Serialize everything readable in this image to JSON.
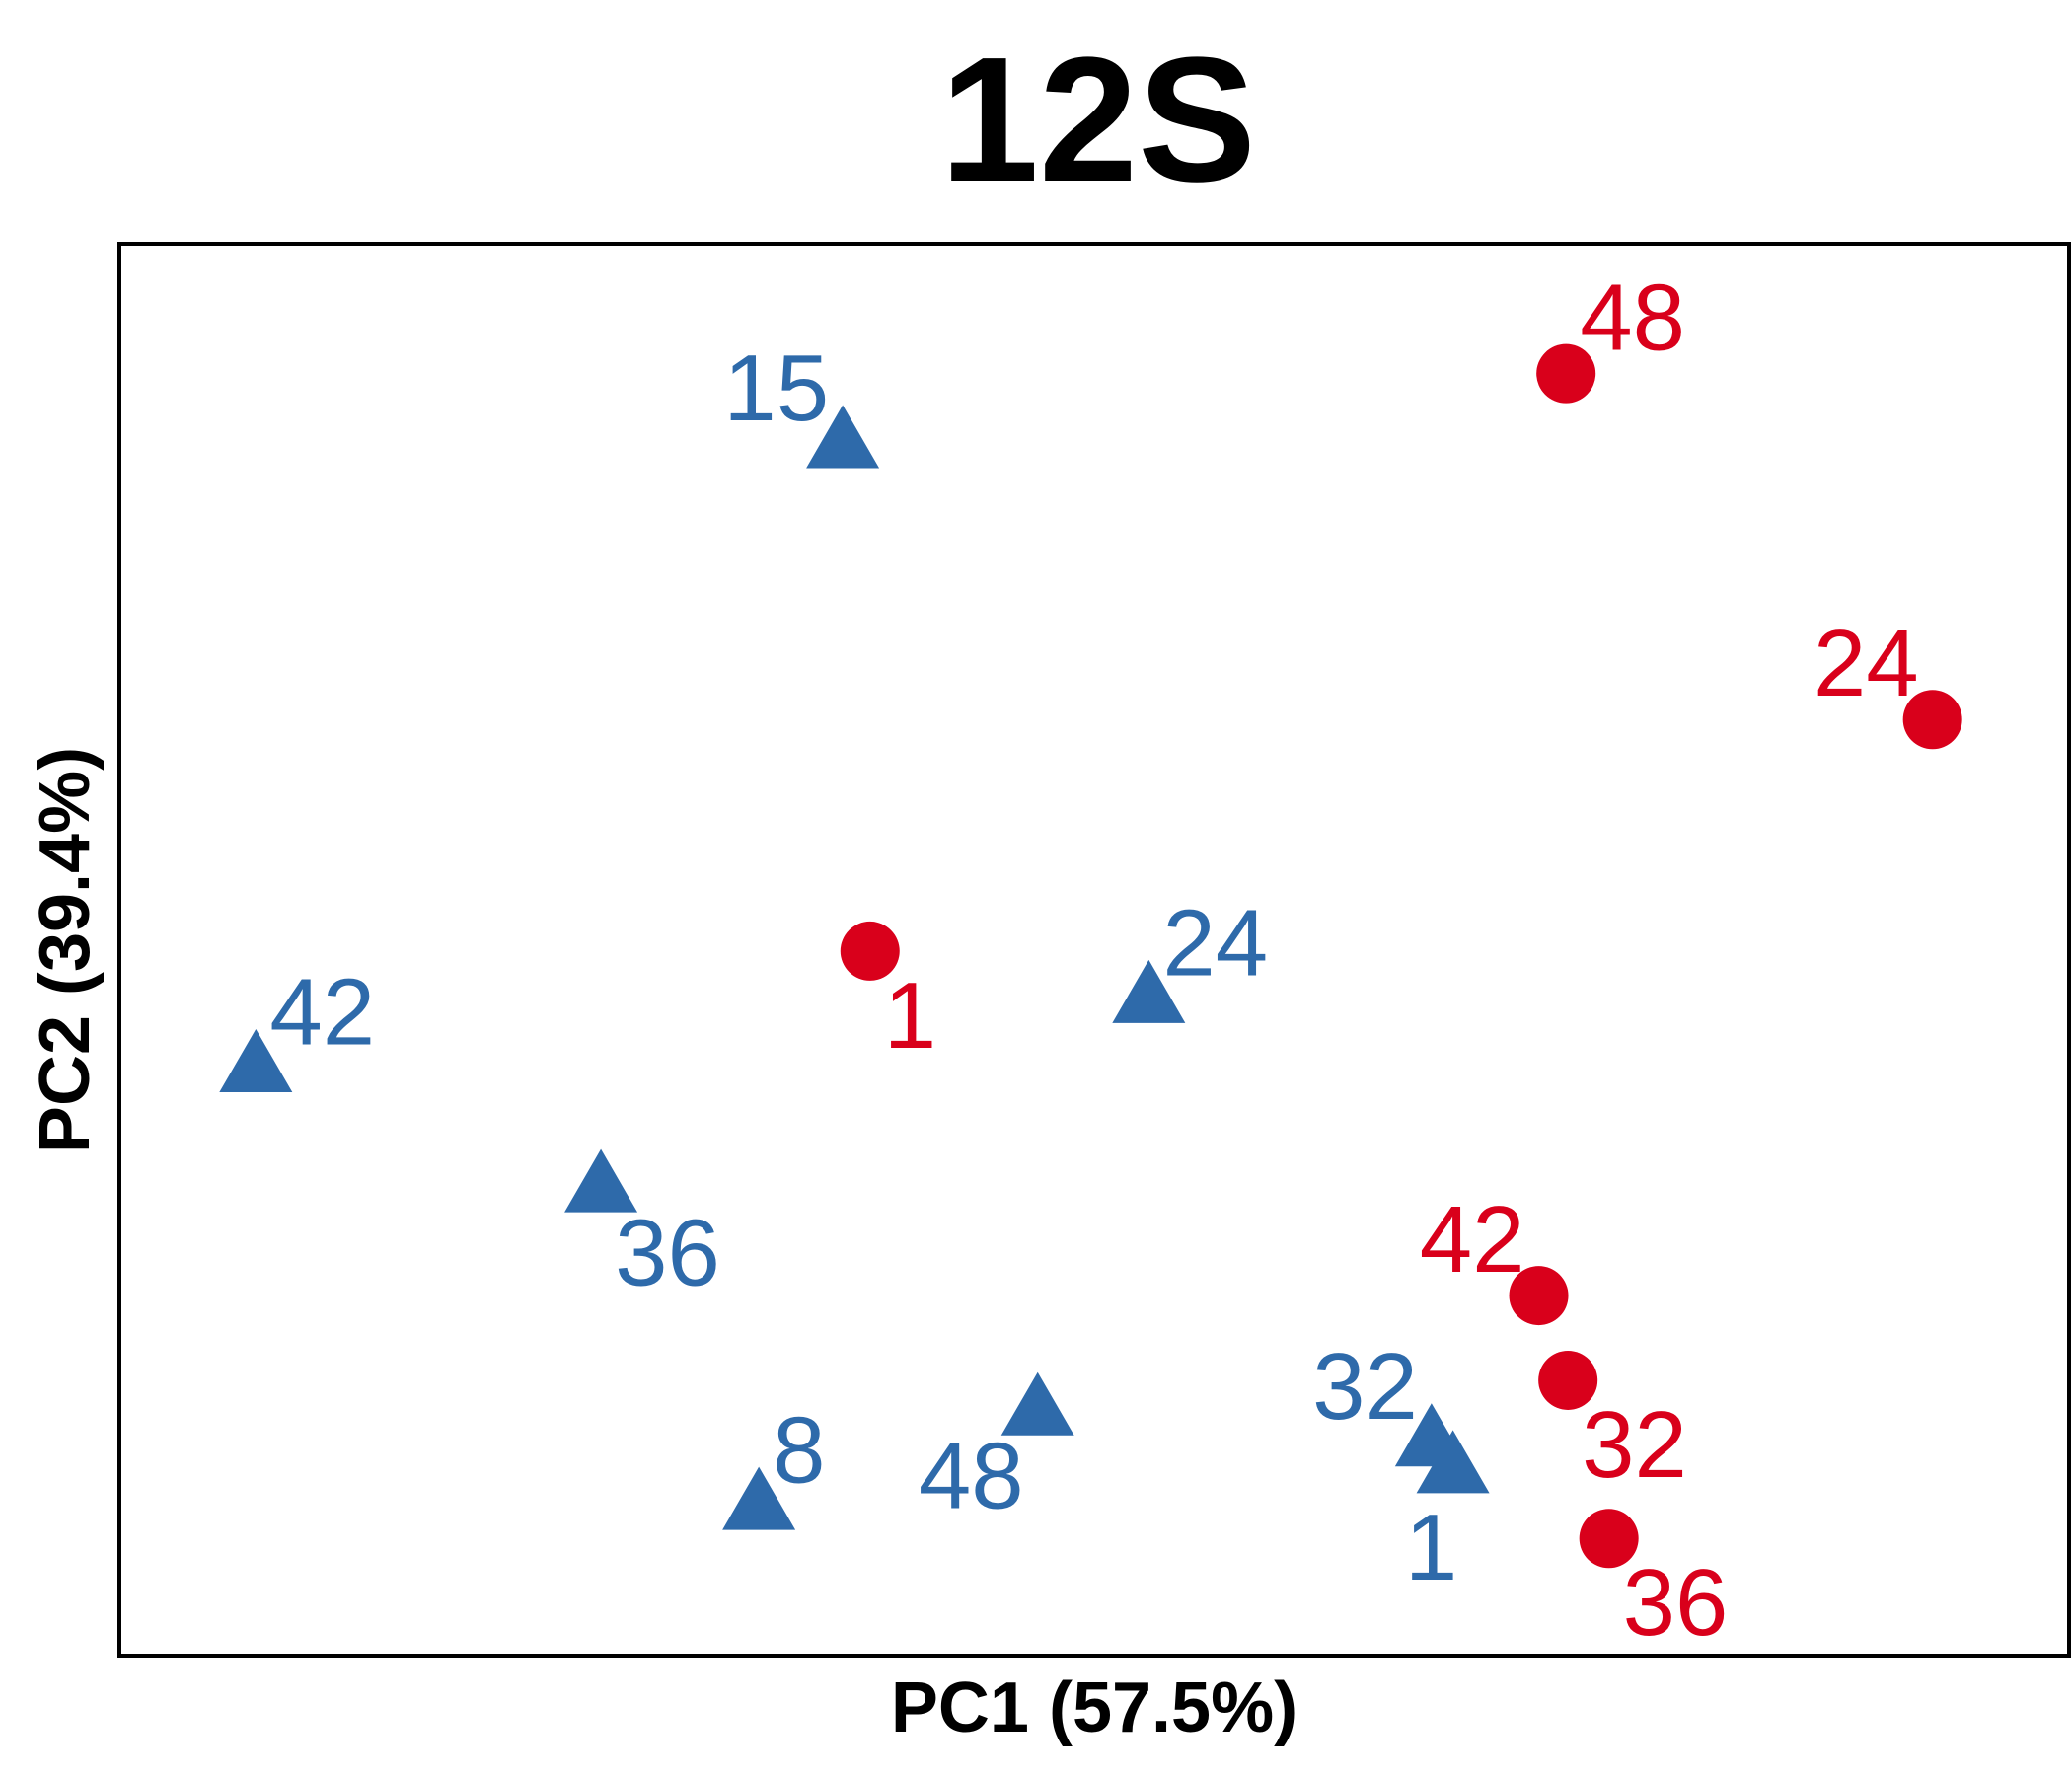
{
  "chart_data": {
    "type": "scatter",
    "title": "12S",
    "xlabel": "PC1 (57.5%)",
    "ylabel": "PC2 (39.4%)",
    "xlim": [
      0,
      100
    ],
    "ylim": [
      0,
      100
    ],
    "grid": false,
    "axis_ticks": false,
    "colors": {
      "triangle": "#2e6aaa",
      "circle": "#d9001b"
    },
    "series": [
      {
        "marker": "triangle",
        "color": "#2e6aaa",
        "points": [
          {
            "label": "15",
            "x": 37.1,
            "y": 85.8,
            "anchor": "nw"
          },
          {
            "label": "42",
            "x": 7.0,
            "y": 41.6,
            "anchor": "ne"
          },
          {
            "label": "24",
            "x": 52.8,
            "y": 46.5,
            "anchor": "ne"
          },
          {
            "label": "36",
            "x": 24.7,
            "y": 33.1,
            "anchor": "se"
          },
          {
            "label": "8",
            "x": 32.8,
            "y": 10.6,
            "anchor": "ne"
          },
          {
            "label": "48",
            "x": 47.1,
            "y": 17.3,
            "anchor": "sw"
          },
          {
            "label": "32",
            "x": 67.3,
            "y": 15.1,
            "anchor": "nw"
          },
          {
            "label": "1",
            "x": 68.4,
            "y": 13.2,
            "anchor": "s"
          }
        ]
      },
      {
        "marker": "circle",
        "color": "#d9001b",
        "points": [
          {
            "label": "48",
            "x": 74.2,
            "y": 90.8,
            "anchor": "ne"
          },
          {
            "label": "24",
            "x": 93.0,
            "y": 66.3,
            "anchor": "nw"
          },
          {
            "label": "1",
            "x": 38.5,
            "y": 49.9,
            "anchor": "se"
          },
          {
            "label": "42",
            "x": 72.8,
            "y": 25.5,
            "anchor": "nw"
          },
          {
            "label": "32",
            "x": 74.3,
            "y": 19.5,
            "anchor": "se"
          },
          {
            "label": "36",
            "x": 76.4,
            "y": 8.3,
            "anchor": "se"
          }
        ]
      }
    ]
  }
}
